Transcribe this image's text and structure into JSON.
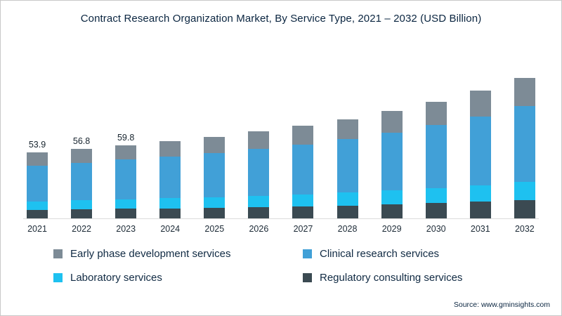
{
  "title": "Contract Research Organization Market, By Service Type, 2021 – 2032 (USD Billion)",
  "source": "Source: www.gminsights.com",
  "chart_data": {
    "type": "bar",
    "stacked": true,
    "title": "Contract Research Organization Market, By Service Type, 2021 – 2032 (USD Billion)",
    "unit": "USD Billion",
    "xlabel": "",
    "ylabel": "",
    "grid": false,
    "legend_position": "bottom",
    "ylim": [
      0,
      120
    ],
    "categories": [
      "2021",
      "2022",
      "2023",
      "2024",
      "2025",
      "2026",
      "2027",
      "2028",
      "2029",
      "2030",
      "2031",
      "2032"
    ],
    "series": [
      {
        "name": "Regulatory consulting services",
        "color": "#3b4a52",
        "values": [
          7.0,
          7.4,
          7.8,
          8.2,
          8.7,
          9.2,
          9.8,
          10.5,
          11.4,
          12.4,
          13.5,
          14.9
        ]
      },
      {
        "name": "Laboratory services",
        "color": "#1ec1f0",
        "values": [
          7.0,
          7.4,
          7.8,
          8.2,
          8.7,
          9.2,
          9.8,
          10.5,
          11.4,
          12.4,
          13.5,
          14.9
        ]
      },
      {
        "name": "Clinical research services",
        "color": "#41a0d7",
        "values": [
          29.1,
          30.7,
          32.3,
          34.1,
          36.0,
          38.3,
          40.8,
          43.8,
          47.2,
          51.3,
          56.2,
          61.8
        ]
      },
      {
        "name": "Early phase development services",
        "color": "#7d8b96",
        "values": [
          10.8,
          11.3,
          11.9,
          12.6,
          13.2,
          14.2,
          15.2,
          16.2,
          17.5,
          18.9,
          20.8,
          22.9
        ]
      }
    ],
    "totals": [
      53.9,
      56.8,
      59.8,
      63.1,
      66.6,
      70.9,
      75.6,
      81.0,
      87.5,
      95.0,
      104.0,
      114.5
    ],
    "bar_labels": [
      "53.9",
      "56.8",
      "59.8",
      "",
      "",
      "",
      "",
      "",
      "",
      "",
      "",
      ""
    ],
    "legend_order": [
      3,
      2,
      1,
      0
    ]
  }
}
